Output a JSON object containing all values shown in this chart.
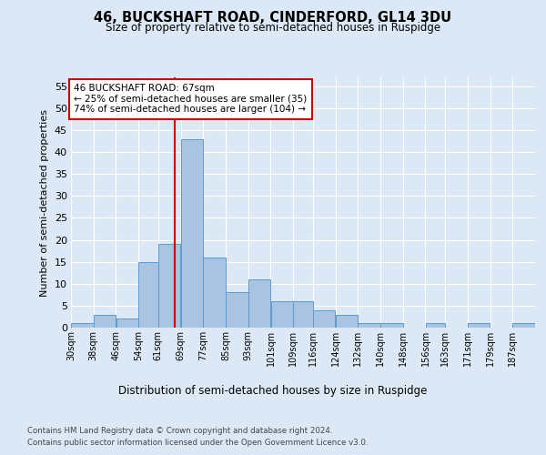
{
  "title": "46, BUCKSHAFT ROAD, CINDERFORD, GL14 3DU",
  "subtitle": "Size of property relative to semi-detached houses in Ruspidge",
  "xlabel": "Distribution of semi-detached houses by size in Ruspidge",
  "ylabel": "Number of semi-detached properties",
  "bin_labels": [
    "30sqm",
    "38sqm",
    "46sqm",
    "54sqm",
    "61sqm",
    "69sqm",
    "77sqm",
    "85sqm",
    "93sqm",
    "101sqm",
    "109sqm",
    "116sqm",
    "124sqm",
    "132sqm",
    "140sqm",
    "148sqm",
    "156sqm",
    "163sqm",
    "171sqm",
    "179sqm",
    "187sqm"
  ],
  "bin_edges": [
    30,
    38,
    46,
    54,
    61,
    69,
    77,
    85,
    93,
    101,
    109,
    116,
    124,
    132,
    140,
    148,
    156,
    163,
    171,
    179,
    187,
    195
  ],
  "counts": [
    1,
    3,
    2,
    15,
    19,
    43,
    16,
    8,
    11,
    6,
    6,
    4,
    3,
    1,
    1,
    0,
    1,
    0,
    1,
    0,
    1
  ],
  "bar_color": "#a8c4e0",
  "bar_edge_color": "#5b9bd5",
  "subject_value": 67,
  "annotation_title": "46 BUCKSHAFT ROAD: 67sqm",
  "annotation_line1": "← 25% of semi-detached houses are smaller (35)",
  "annotation_line2": "74% of semi-detached houses are larger (104) →",
  "vline_color": "#cc0000",
  "annotation_box_color": "#cc0000",
  "ylim": [
    0,
    57
  ],
  "yticks": [
    0,
    5,
    10,
    15,
    20,
    25,
    30,
    35,
    40,
    45,
    50,
    55
  ],
  "footer_line1": "Contains HM Land Registry data © Crown copyright and database right 2024.",
  "footer_line2": "Contains public sector information licensed under the Open Government Licence v3.0.",
  "bg_color": "#dce8f5",
  "plot_bg_color": "#dce8f5"
}
